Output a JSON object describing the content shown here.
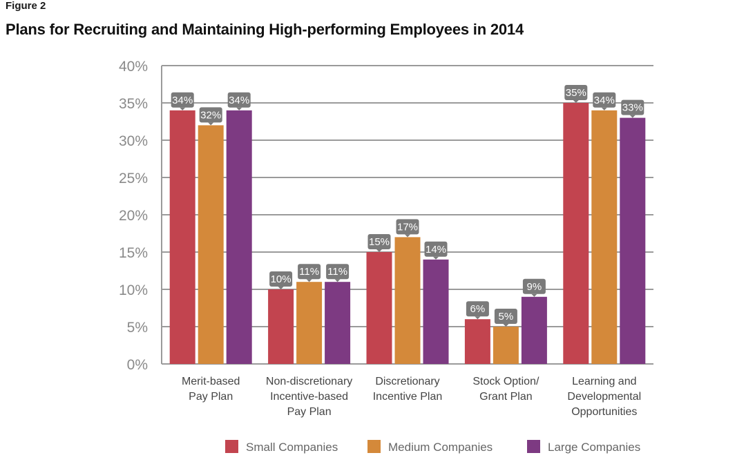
{
  "figure_label": "Figure 2",
  "title": "Plans for Recruiting and Maintaining High-performing Employees in 2014",
  "chart_data": {
    "type": "bar",
    "title": "Plans for Recruiting and Maintaining High-performing Employees in 2014",
    "xlabel": "",
    "ylabel": "",
    "ylim": [
      0,
      40
    ],
    "ytick_step": 5,
    "ytick_suffix": "%",
    "grid": true,
    "legend_position": "bottom",
    "categories": [
      [
        "Merit-based",
        "Pay Plan"
      ],
      [
        "Non-discretionary",
        "Incentive-based",
        "Pay Plan"
      ],
      [
        "Discretionary",
        "Incentive Plan"
      ],
      [
        "Stock Option/",
        "Grant Plan"
      ],
      [
        "Learning and",
        "Developmental",
        "Opportunities"
      ]
    ],
    "series": [
      {
        "name": "Small Companies",
        "color": "#c2444f",
        "values": [
          34,
          10,
          15,
          6,
          35
        ],
        "labels": [
          "34%",
          "10%",
          "15%",
          "6%",
          "35%"
        ]
      },
      {
        "name": "Medium Companies",
        "color": "#d4893a",
        "values": [
          32,
          11,
          17,
          5,
          34
        ],
        "labels": [
          "32%",
          "11%",
          "17%",
          "5%",
          "34%"
        ]
      },
      {
        "name": "Large Companies",
        "color": "#7d3a82",
        "values": [
          34,
          11,
          14,
          9,
          33
        ],
        "labels": [
          "34%",
          "11%",
          "14%",
          "9%",
          "33%"
        ]
      }
    ],
    "label_bg_color": "#7a7a7a",
    "grid_color": "#9a9a9a"
  }
}
